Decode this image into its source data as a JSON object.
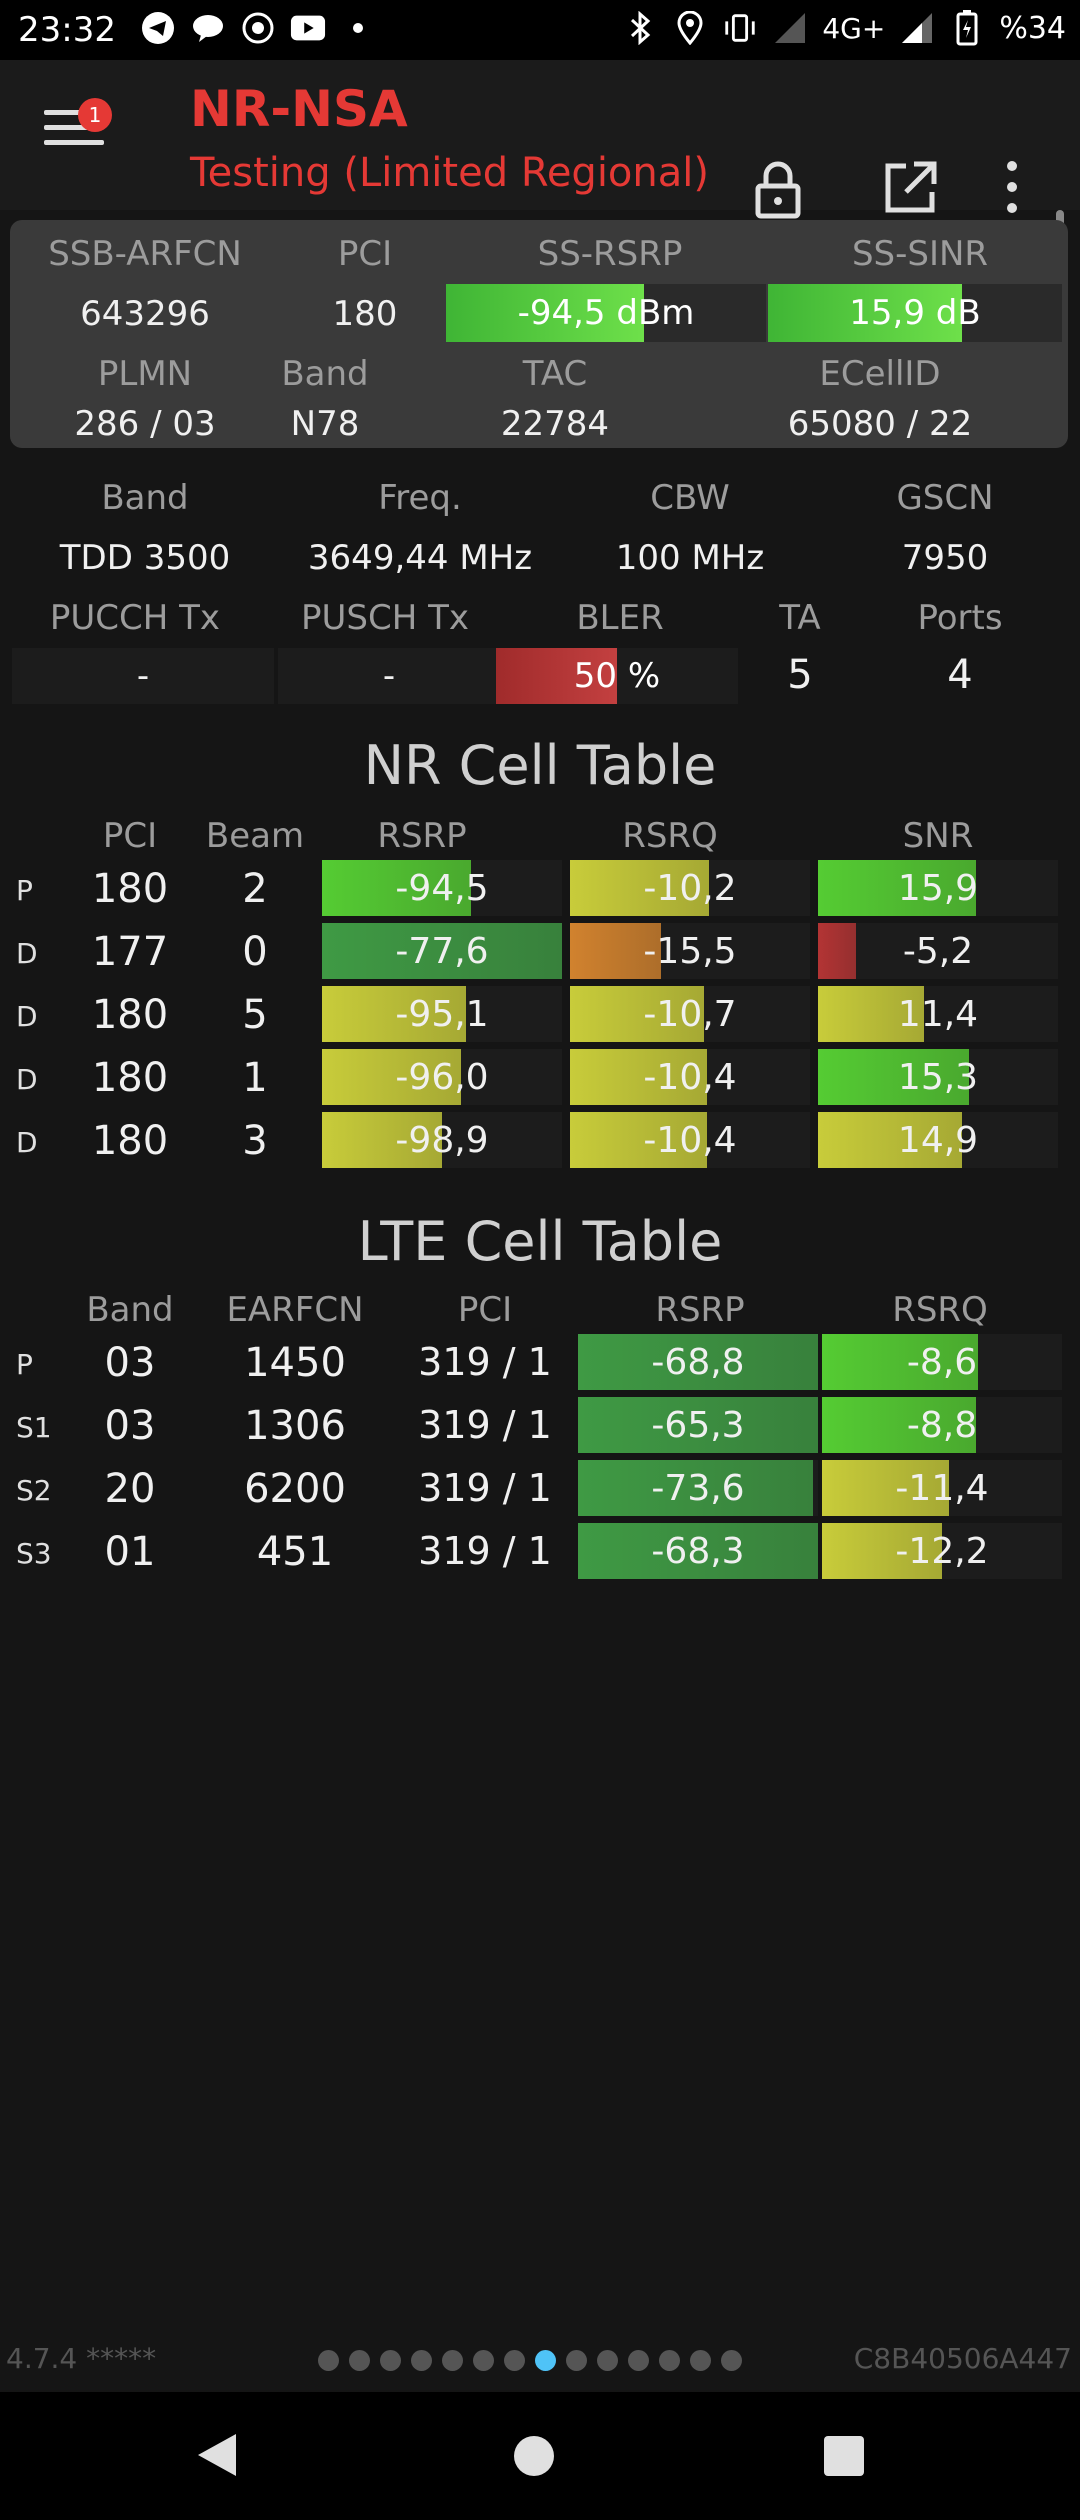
{
  "status_bar": {
    "time": "23:32",
    "network": "4G+",
    "battery": "%34",
    "left_icons": [
      "telegram-icon",
      "chat-icon",
      "whatsapp-icon",
      "youtube-icon",
      "dot-icon"
    ],
    "right_icons": [
      "bluetooth-icon",
      "location-icon",
      "vibrate-icon",
      "signal-icon",
      "signal-icon",
      "battery-icon"
    ]
  },
  "app_bar": {
    "title": "NR-NSA",
    "subtitle": "Testing (Limited Regional)",
    "menu_badge": "1",
    "accent": "#e53935"
  },
  "summary": {
    "labels": {
      "arfcn": "SSB-ARFCN",
      "pci": "PCI",
      "rsrp": "SS-RSRP",
      "sinr": "SS-SINR",
      "plmn": "PLMN",
      "band": "Band",
      "tac": "TAC",
      "ecellid": "ECellID"
    },
    "arfcn": "643296",
    "pci": "180",
    "rsrp": "-94,5 dBm",
    "rsrp_level": 0.62,
    "sinr": "15,9 dB",
    "sinr_level": 0.66,
    "plmn": "286 / 03",
    "band": "N78",
    "tac": "22784",
    "ecellid": "65080 / 22"
  },
  "details": {
    "labels": {
      "band": "Band",
      "freq": "Freq.",
      "cbw": "CBW",
      "gscn": "GSCN",
      "pucch": "PUCCH Tx",
      "pusch": "PUSCH Tx",
      "bler": "BLER",
      "ta": "TA",
      "ports": "Ports"
    },
    "band": "TDD 3500",
    "freq": "3649,44 MHz",
    "cbw": "100 MHz",
    "gscn": "7950",
    "pucch": "-",
    "pusch": "-",
    "bler": "50 %",
    "bler_level": 0.5,
    "ta": "5",
    "ports": "4"
  },
  "nr_table": {
    "title": "NR Cell Table",
    "headers": [
      "PCI",
      "Beam",
      "RSRP",
      "RSRQ",
      "SNR"
    ],
    "rows": [
      {
        "label": "P",
        "pci": "180",
        "beam": "2",
        "rsrp": "-94,5",
        "rsrp_level": 0.62,
        "rsrp_color": "#55cc33",
        "rsrq": "-10,2",
        "rsrq_level": 0.58,
        "rsrq_color": "#c8cc3a",
        "snr": "15,9",
        "snr_level": 0.66,
        "snr_color": "#55cc33"
      },
      {
        "label": "D",
        "pci": "177",
        "beam": "0",
        "rsrp": "-77,6",
        "rsrp_level": 1.0,
        "rsrp_color": "#3f9a44",
        "rsrq": "-15,5",
        "rsrq_level": 0.38,
        "rsrq_color": "#d1822e",
        "snr": "-5,2",
        "snr_level": 0.16,
        "snr_color": "#b33434"
      },
      {
        "label": "D",
        "pci": "180",
        "beam": "5",
        "rsrp": "-95,1",
        "rsrp_level": 0.6,
        "rsrp_color": "#c8cc3a",
        "rsrq": "-10,7",
        "rsrq_level": 0.56,
        "rsrq_color": "#c8cc3a",
        "snr": "11,4",
        "snr_level": 0.44,
        "snr_color": "#c8cc3a"
      },
      {
        "label": "D",
        "pci": "180",
        "beam": "1",
        "rsrp": "-96,0",
        "rsrp_level": 0.58,
        "rsrp_color": "#c8cc3a",
        "rsrq": "-10,4",
        "rsrq_level": 0.57,
        "rsrq_color": "#c8cc3a",
        "snr": "15,3",
        "snr_level": 0.63,
        "snr_color": "#55cc33"
      },
      {
        "label": "D",
        "pci": "180",
        "beam": "3",
        "rsrp": "-98,9",
        "rsrp_level": 0.5,
        "rsrp_color": "#c8cc3a",
        "rsrq": "-10,4",
        "rsrq_level": 0.57,
        "rsrq_color": "#c8cc3a",
        "snr": "14,9",
        "snr_level": 0.6,
        "snr_color": "#c8cc3a"
      }
    ]
  },
  "lte_table": {
    "title": "LTE Cell Table",
    "headers": [
      "Band",
      "EARFCN",
      "PCI",
      "RSRP",
      "RSRQ"
    ],
    "rows": [
      {
        "label": "P",
        "band": "03",
        "earfcn": "1450",
        "pci": "319 / 1",
        "rsrp": "-68,8",
        "rsrp_level": 1.0,
        "rsrp_color": "#3f9a44",
        "rsrq": "-8,6",
        "rsrq_level": 0.65,
        "rsrq_color": "#55cc33"
      },
      {
        "label": "S1",
        "band": "03",
        "earfcn": "1306",
        "pci": "319 / 1",
        "rsrp": "-65,3",
        "rsrp_level": 1.0,
        "rsrp_color": "#3f9a44",
        "rsrq": "-8,8",
        "rsrq_level": 0.64,
        "rsrq_color": "#55cc33"
      },
      {
        "label": "S2",
        "band": "20",
        "earfcn": "6200",
        "pci": "319 / 1",
        "rsrp": "-73,6",
        "rsrp_level": 0.98,
        "rsrp_color": "#3f9a44",
        "rsrq": "-11,4",
        "rsrq_level": 0.53,
        "rsrq_color": "#c8cc3a"
      },
      {
        "label": "S3",
        "band": "01",
        "earfcn": "451",
        "pci": "319 / 1",
        "rsrp": "-68,3",
        "rsrp_level": 1.0,
        "rsrp_color": "#3f9a44",
        "rsrq": "-12,2",
        "rsrq_level": 0.5,
        "rsrq_color": "#c8cc3a"
      }
    ]
  },
  "footer": {
    "version": "4.7.4 *****",
    "device_id": "C8B40506A447",
    "page_count": 14,
    "active_page": 8
  }
}
